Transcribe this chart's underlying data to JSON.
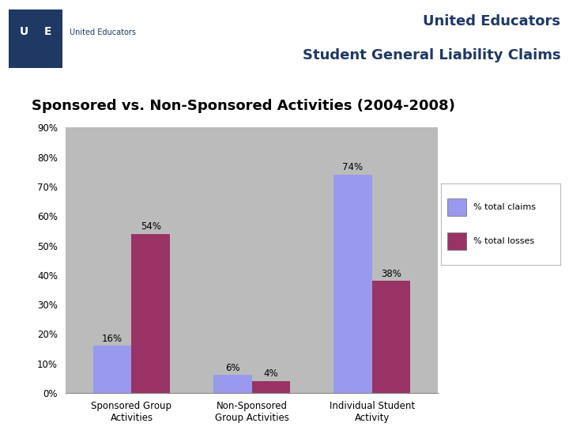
{
  "title_header_line1": "United Educators",
  "title_header_line2": "Student General Liability Claims",
  "chart_title": "Sponsored vs. Non-Sponsored Activities (2004-2008)",
  "categories": [
    "Sponsored Group\nActivities",
    "Non-Sponsored\nGroup Activities",
    "Individual Student\nActivity"
  ],
  "claims": [
    16,
    6,
    74
  ],
  "losses": [
    54,
    4,
    38
  ],
  "claims_color": "#9999ee",
  "losses_color": "#993366",
  "legend_claims": "% total claims",
  "legend_losses": "% total losses",
  "ylim": [
    0,
    90
  ],
  "yticks": [
    0,
    10,
    20,
    30,
    40,
    50,
    60,
    70,
    80,
    90
  ],
  "ytick_labels": [
    "0%",
    "10%",
    "20%",
    "30%",
    "40%",
    "50%",
    "60%",
    "70%",
    "80%",
    "90%"
  ],
  "background_color": "#ffffff",
  "plot_bg_color": "#bbbbbb",
  "header_title_color": "#1f3864",
  "chart_title_color": "#000000",
  "bar_width": 0.32,
  "header_line_color": "#c8a800",
  "header_line_color2": "#ffffff"
}
